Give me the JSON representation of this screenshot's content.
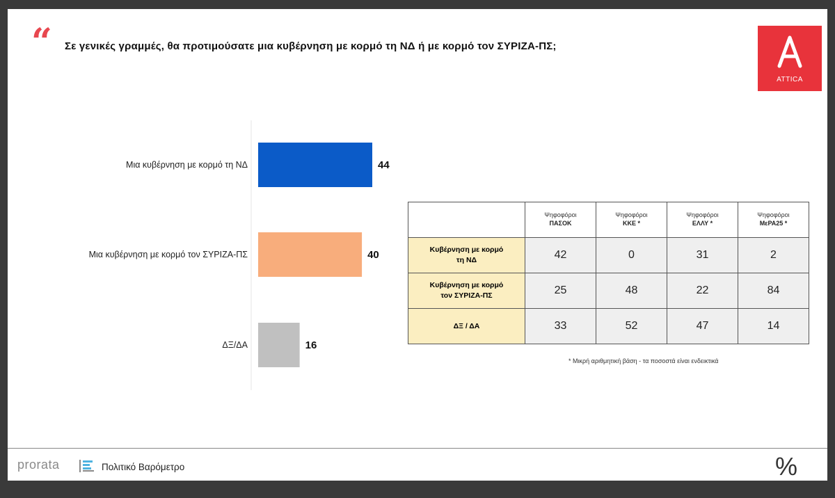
{
  "header": {
    "question": "Σε γενικές γραμμές, θα προτιμούσατε μια κυβέρνηση με κορμό τη ΝΔ ή με κορμό τον ΣΥΡΙΖΑ-ΠΣ;"
  },
  "logo": {
    "text": "ATTICA",
    "bg_color": "#e8333b"
  },
  "chart_data": {
    "type": "bar",
    "orientation": "horizontal",
    "categories": [
      "Μια κυβέρνηση με κορμό τη ΝΔ",
      "Μια κυβέρνηση με κορμό τον ΣΥΡΙΖΑ-ΠΣ",
      "ΔΞ/ΔΑ"
    ],
    "values": [
      44,
      40,
      16
    ],
    "colors": [
      "#0b5bc8",
      "#f8ad7c",
      "#c0c0c0"
    ],
    "data_labels": [
      "44",
      "40",
      "16"
    ],
    "xlim": [
      0,
      44
    ],
    "grid": false
  },
  "table": {
    "group_label": "Ψηφοφόροι",
    "parties": [
      "ΠΑΣΟΚ",
      "ΚΚΕ *",
      "ΕΛΛΥ *",
      "ΜεΡΑ25 *"
    ],
    "rows": [
      {
        "label_line1": "Κυβέρνηση με κορμό",
        "label_line2": "τη ΝΔ",
        "values": [
          "42",
          "0",
          "31",
          "2"
        ]
      },
      {
        "label_line1": "Κυβέρνηση με κορμό",
        "label_line2": "τον ΣΥΡΙΖΑ-ΠΣ",
        "values": [
          "25",
          "48",
          "22",
          "84"
        ]
      },
      {
        "label_line1": "ΔΞ / ΔΑ",
        "label_line2": "",
        "values": [
          "33",
          "52",
          "47",
          "14"
        ]
      }
    ],
    "note": "* Μικρή αριθμητική βάση - τα ποσοστά είναι ενδεικτικά"
  },
  "footer": {
    "brand": "prorata",
    "title": "Πολιτικό Βαρόμετρο",
    "symbol": "%"
  }
}
